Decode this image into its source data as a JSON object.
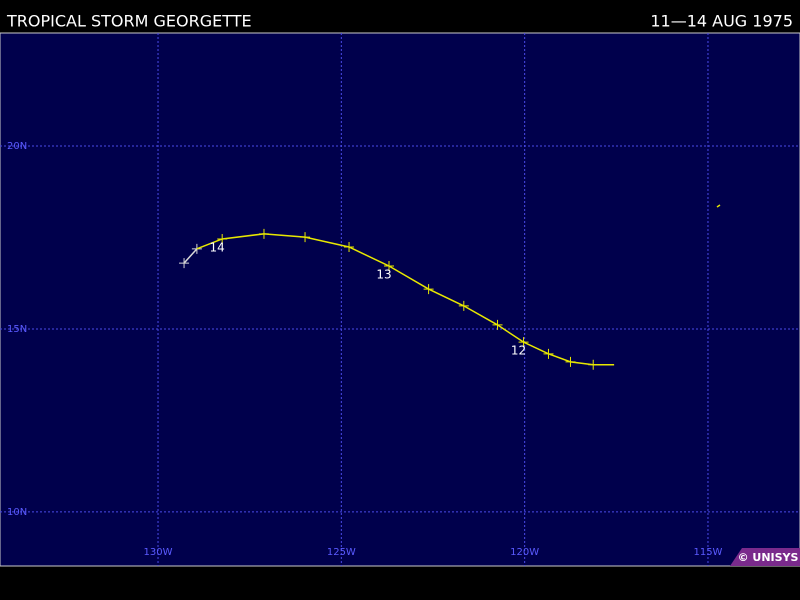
{
  "chart_data": {
    "type": "track",
    "title": "TROPICAL STORM GEORGETTE",
    "date_range": "11—14 AUG 1975",
    "credit": "© UNISYS",
    "xlim": [
      -134.31,
      -112.49
    ],
    "ylim": [
      8.52,
      23.09
    ],
    "xticks": [
      {
        "value": -130,
        "label": "130W"
      },
      {
        "value": -125,
        "label": "125W"
      },
      {
        "value": -120,
        "label": "120W"
      },
      {
        "value": -115,
        "label": "115W"
      }
    ],
    "yticks": [
      {
        "value": 20,
        "label": "20N"
      },
      {
        "value": 15,
        "label": "15N"
      },
      {
        "value": 10,
        "label": "10N"
      }
    ],
    "grid": true,
    "series": [
      {
        "color": "#d8d8d8",
        "x": [
          -129.29,
          -128.94
        ],
        "values": [
          16.8,
          17.19
        ]
      },
      {
        "color": "#e8e800",
        "x": [
          -128.94,
          -128.25,
          -127.11,
          -125.99,
          -124.79,
          -123.7,
          -122.62,
          -121.66,
          -120.74,
          -120.03,
          -119.35,
          -118.75,
          -118.13,
          -117.56
        ],
        "values": [
          17.19,
          17.46,
          17.6,
          17.51,
          17.24,
          16.72,
          16.09,
          15.63,
          15.11,
          14.64,
          14.32,
          14.1,
          14.02,
          14.02
        ]
      }
    ],
    "day_labels": [
      "14",
      "13",
      "12"
    ]
  }
}
